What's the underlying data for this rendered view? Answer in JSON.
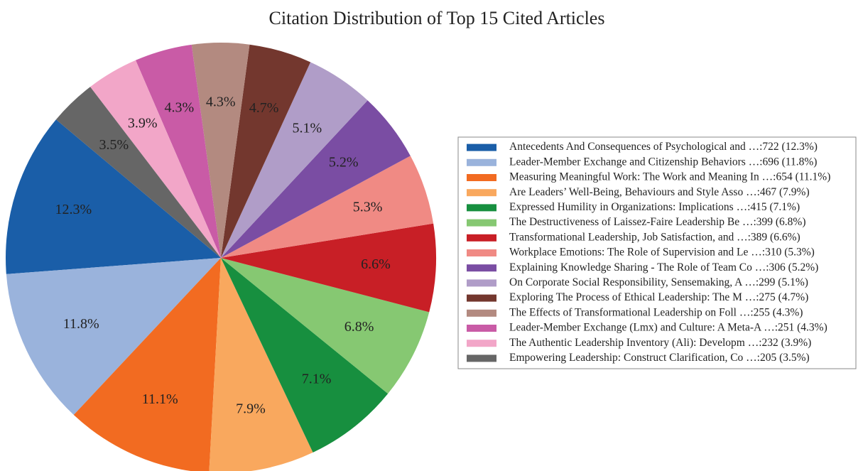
{
  "chart_data": {
    "type": "pie",
    "title": "Citation Distribution of Top 15 Cited Articles",
    "categories": [
      "Antecedents And Consequences of Psychological and …:722 (12.3%)",
      "Leader-Member Exchange and Citizenship Behaviors …:696 (11.8%)",
      "Measuring Meaningful Work: The Work and Meaning In …:654 (11.1%)",
      "Are Leaders’ Well-Being, Behaviours and Style Asso …:467 (7.9%)",
      "Expressed Humility in Organizations: Implications …:415 (7.1%)",
      "The Destructiveness of Laissez-Faire Leadership Be …:399 (6.8%)",
      "Transformational Leadership, Job Satisfaction, and …:389 (6.6%)",
      "Workplace Emotions: The Role of Supervision and Le …:310 (5.3%)",
      "Explaining Knowledge Sharing - The Role of Team Co …:306 (5.2%)",
      "On Corporate Social Responsibility, Sensemaking, A …:299 (5.1%)",
      "Exploring The Process of Ethical Leadership: The M …:275 (4.7%)",
      "The Effects of Transformational Leadership on Foll …:255 (4.3%)",
      "Leader-Member Exchange (Lmx) and Culture: A Meta-A …:251 (4.3%)",
      "The Authentic Leadership Inventory (Ali): Developm …:232 (3.9%)",
      "Empowering Leadership: Construct Clarification, Co …:205 (3.5%)"
    ],
    "values": [
      12.3,
      11.8,
      11.1,
      7.9,
      7.1,
      6.8,
      6.6,
      5.3,
      5.2,
      5.1,
      4.7,
      4.3,
      4.3,
      3.9,
      3.5
    ],
    "value_labels": [
      "12.3%",
      "11.8%",
      "11.1%",
      "7.9%",
      "7.1%",
      "6.8%",
      "6.6%",
      "5.3%",
      "5.2%",
      "5.1%",
      "4.7%",
      "4.3%",
      "4.3%",
      "3.9%",
      "3.5%"
    ],
    "colors": [
      "#1a5ea8",
      "#9ab3dc",
      "#f26b21",
      "#f9a85e",
      "#178f3f",
      "#86c872",
      "#c81f26",
      "#f08a84",
      "#7a4da3",
      "#b09dc8",
      "#73372e",
      "#b38a80",
      "#c95ba6",
      "#f2a6c8",
      "#666666"
    ],
    "start_angle": 140,
    "legend": "right"
  }
}
